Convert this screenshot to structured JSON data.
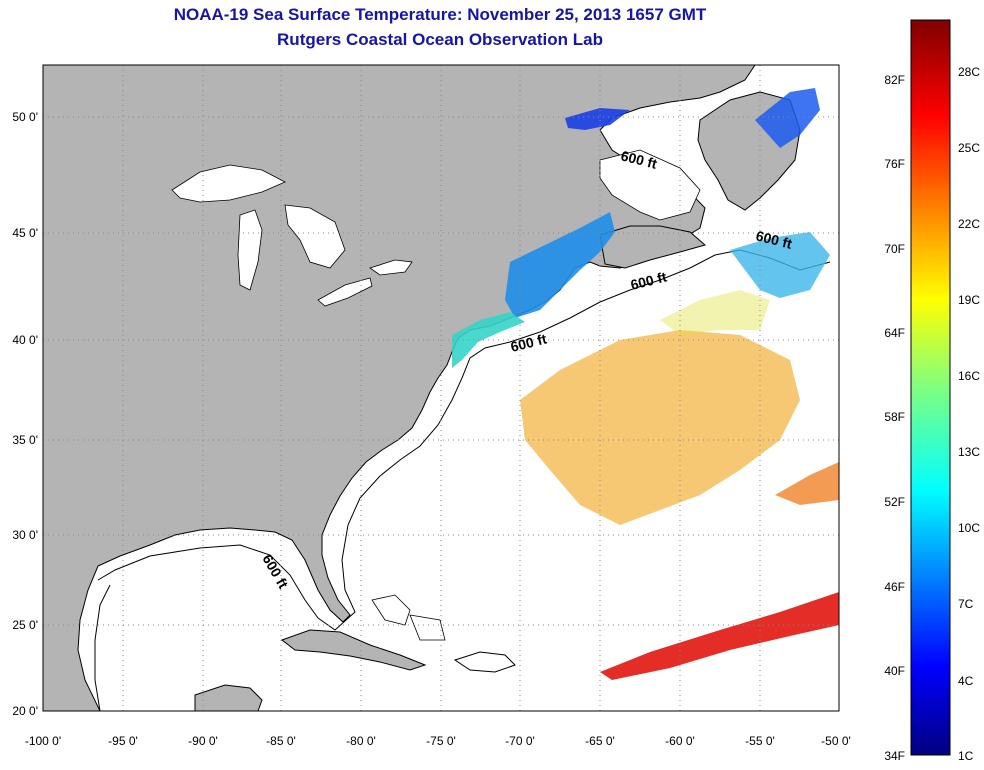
{
  "title": "NOAA-19 Sea Surface Temperature:  November 25, 2013 1657 GMT",
  "subtitle": "Rutgers Coastal Ocean Observation Lab",
  "lon_ticks": [
    "-100 0'",
    "-95 0'",
    "-90 0'",
    "-85 0'",
    "-80 0'",
    "-75 0'",
    "-70 0'",
    "-65 0'",
    "-60 0'",
    "-55 0'",
    "-50 0'"
  ],
  "lat_ticks": [
    "20 0'",
    "25 0'",
    "30 0'",
    "35 0'",
    "40 0'",
    "45 0'",
    "50 0'"
  ],
  "contour_label": "600 ft",
  "colorbar": {
    "f_labels": [
      "34F",
      "40F",
      "46F",
      "52F",
      "58F",
      "64F",
      "70F",
      "76F",
      "82F"
    ],
    "c_labels": [
      "1C",
      "4C",
      "7C",
      "10C",
      "13C",
      "16C",
      "19C",
      "22C",
      "25C",
      "28C"
    ]
  },
  "colors": {
    "land": "#b4b4b4",
    "title": "#1515a8"
  }
}
